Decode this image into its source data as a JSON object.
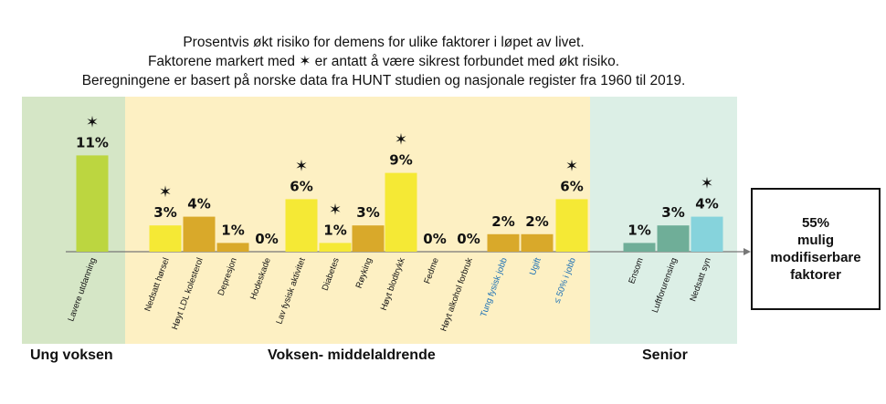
{
  "title_lines": [
    "Prosentvis økt risiko for demens for ulike faktorer i løpet av livet.",
    "Faktorene markert med ✶ er antatt å være sikrest forbundet med økt risiko.",
    "Beregningene er basert på norske data fra HUNT studien og nasjonale register fra 1960 til 2019."
  ],
  "groups": [
    {
      "label": "Ung voksen",
      "color": "#d5e6c6"
    },
    {
      "label": "Voksen- middelaldrende",
      "color": "#fdf0c3"
    },
    {
      "label": "Senior",
      "color": "#dcefe6"
    }
  ],
  "result_box": {
    "text": "55%\nmulig\nmodifiserbare\nfaktorer"
  },
  "star_symbol": "✶",
  "chart_data": {
    "type": "bar",
    "unit": "%",
    "categories": [
      "Lavere utdanning",
      "Nedsatt hørsel",
      "Høyt LDL kolesterol",
      "Depresjon",
      "Hodeskade",
      "Lav fysisk aktivitet",
      "Diabetes",
      "Røyking",
      "Høyt blodtrykk",
      "Fedme",
      "Høyt alkohol forbruk",
      "Tung fysisk jobb",
      "Ugift",
      "≤ 50% i jobb",
      "Ensom",
      "Luftforurensing",
      "Nedsatt syn"
    ],
    "values": [
      11,
      3,
      4,
      1,
      0,
      6,
      1,
      3,
      9,
      0,
      0,
      2,
      2,
      6,
      1,
      3,
      4
    ],
    "value_labels": [
      "11%",
      "3%",
      "4%",
      "1%",
      "0%",
      "6%",
      "1%",
      "3%",
      "9%",
      "0%",
      "0%",
      "2%",
      "2%",
      "6%",
      "1%",
      "3%",
      "4%"
    ],
    "starred": [
      true,
      true,
      false,
      false,
      false,
      true,
      true,
      false,
      true,
      false,
      false,
      false,
      false,
      true,
      false,
      false,
      true
    ],
    "group_index": [
      0,
      1,
      1,
      1,
      1,
      1,
      1,
      1,
      1,
      1,
      1,
      1,
      1,
      1,
      2,
      2,
      2
    ],
    "bar_colors": [
      "#bcd640",
      "#f5e935",
      "#d9a92a",
      "#d9a92a",
      "#d9a92a",
      "#f5e935",
      "#f5e935",
      "#d9a92a",
      "#f5e935",
      "#d9a92a",
      "#d9a92a",
      "#d9a92a",
      "#d9a92a",
      "#f5e935",
      "#6fae98",
      "#6fae98",
      "#86d3dc"
    ],
    "label_colors": [
      "#111111",
      "#111111",
      "#111111",
      "#111111",
      "#111111",
      "#111111",
      "#111111",
      "#111111",
      "#111111",
      "#111111",
      "#111111",
      "#1a6fb5",
      "#1a6fb5",
      "#1a6fb5",
      "#111111",
      "#111111",
      "#111111"
    ],
    "ylim": [
      0,
      12
    ]
  }
}
